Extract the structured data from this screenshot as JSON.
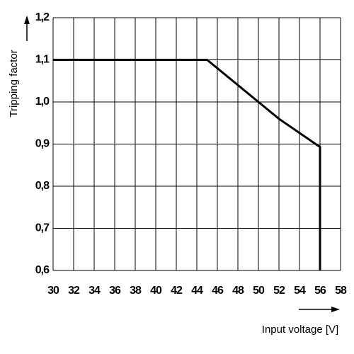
{
  "chart_data": {
    "type": "line",
    "x_label": "Input voltage [V]",
    "y_label": "Tripping factor",
    "x": [
      30,
      45,
      50,
      52,
      56,
      56
    ],
    "values": [
      1.1,
      1.1,
      1.0,
      0.96,
      0.893,
      0.6
    ],
    "color": "#000000",
    "xlim": [
      30,
      58
    ],
    "xticks": [
      30,
      32,
      34,
      36,
      38,
      40,
      42,
      44,
      46,
      48,
      50,
      52,
      54,
      56,
      58
    ],
    "ylim": [
      0.6,
      1.2
    ],
    "yticks": [
      {
        "value": 0.6,
        "label": "0,6"
      },
      {
        "value": 0.7,
        "label": "0,7"
      },
      {
        "value": 0.8,
        "label": "0,8"
      },
      {
        "value": 0.9,
        "label": "0,9"
      },
      {
        "value": 1.0,
        "label": "1,0"
      },
      {
        "value": 1.1,
        "label": "1,1"
      },
      {
        "value": 1.2,
        "label": "1,2"
      }
    ],
    "grid": true
  }
}
